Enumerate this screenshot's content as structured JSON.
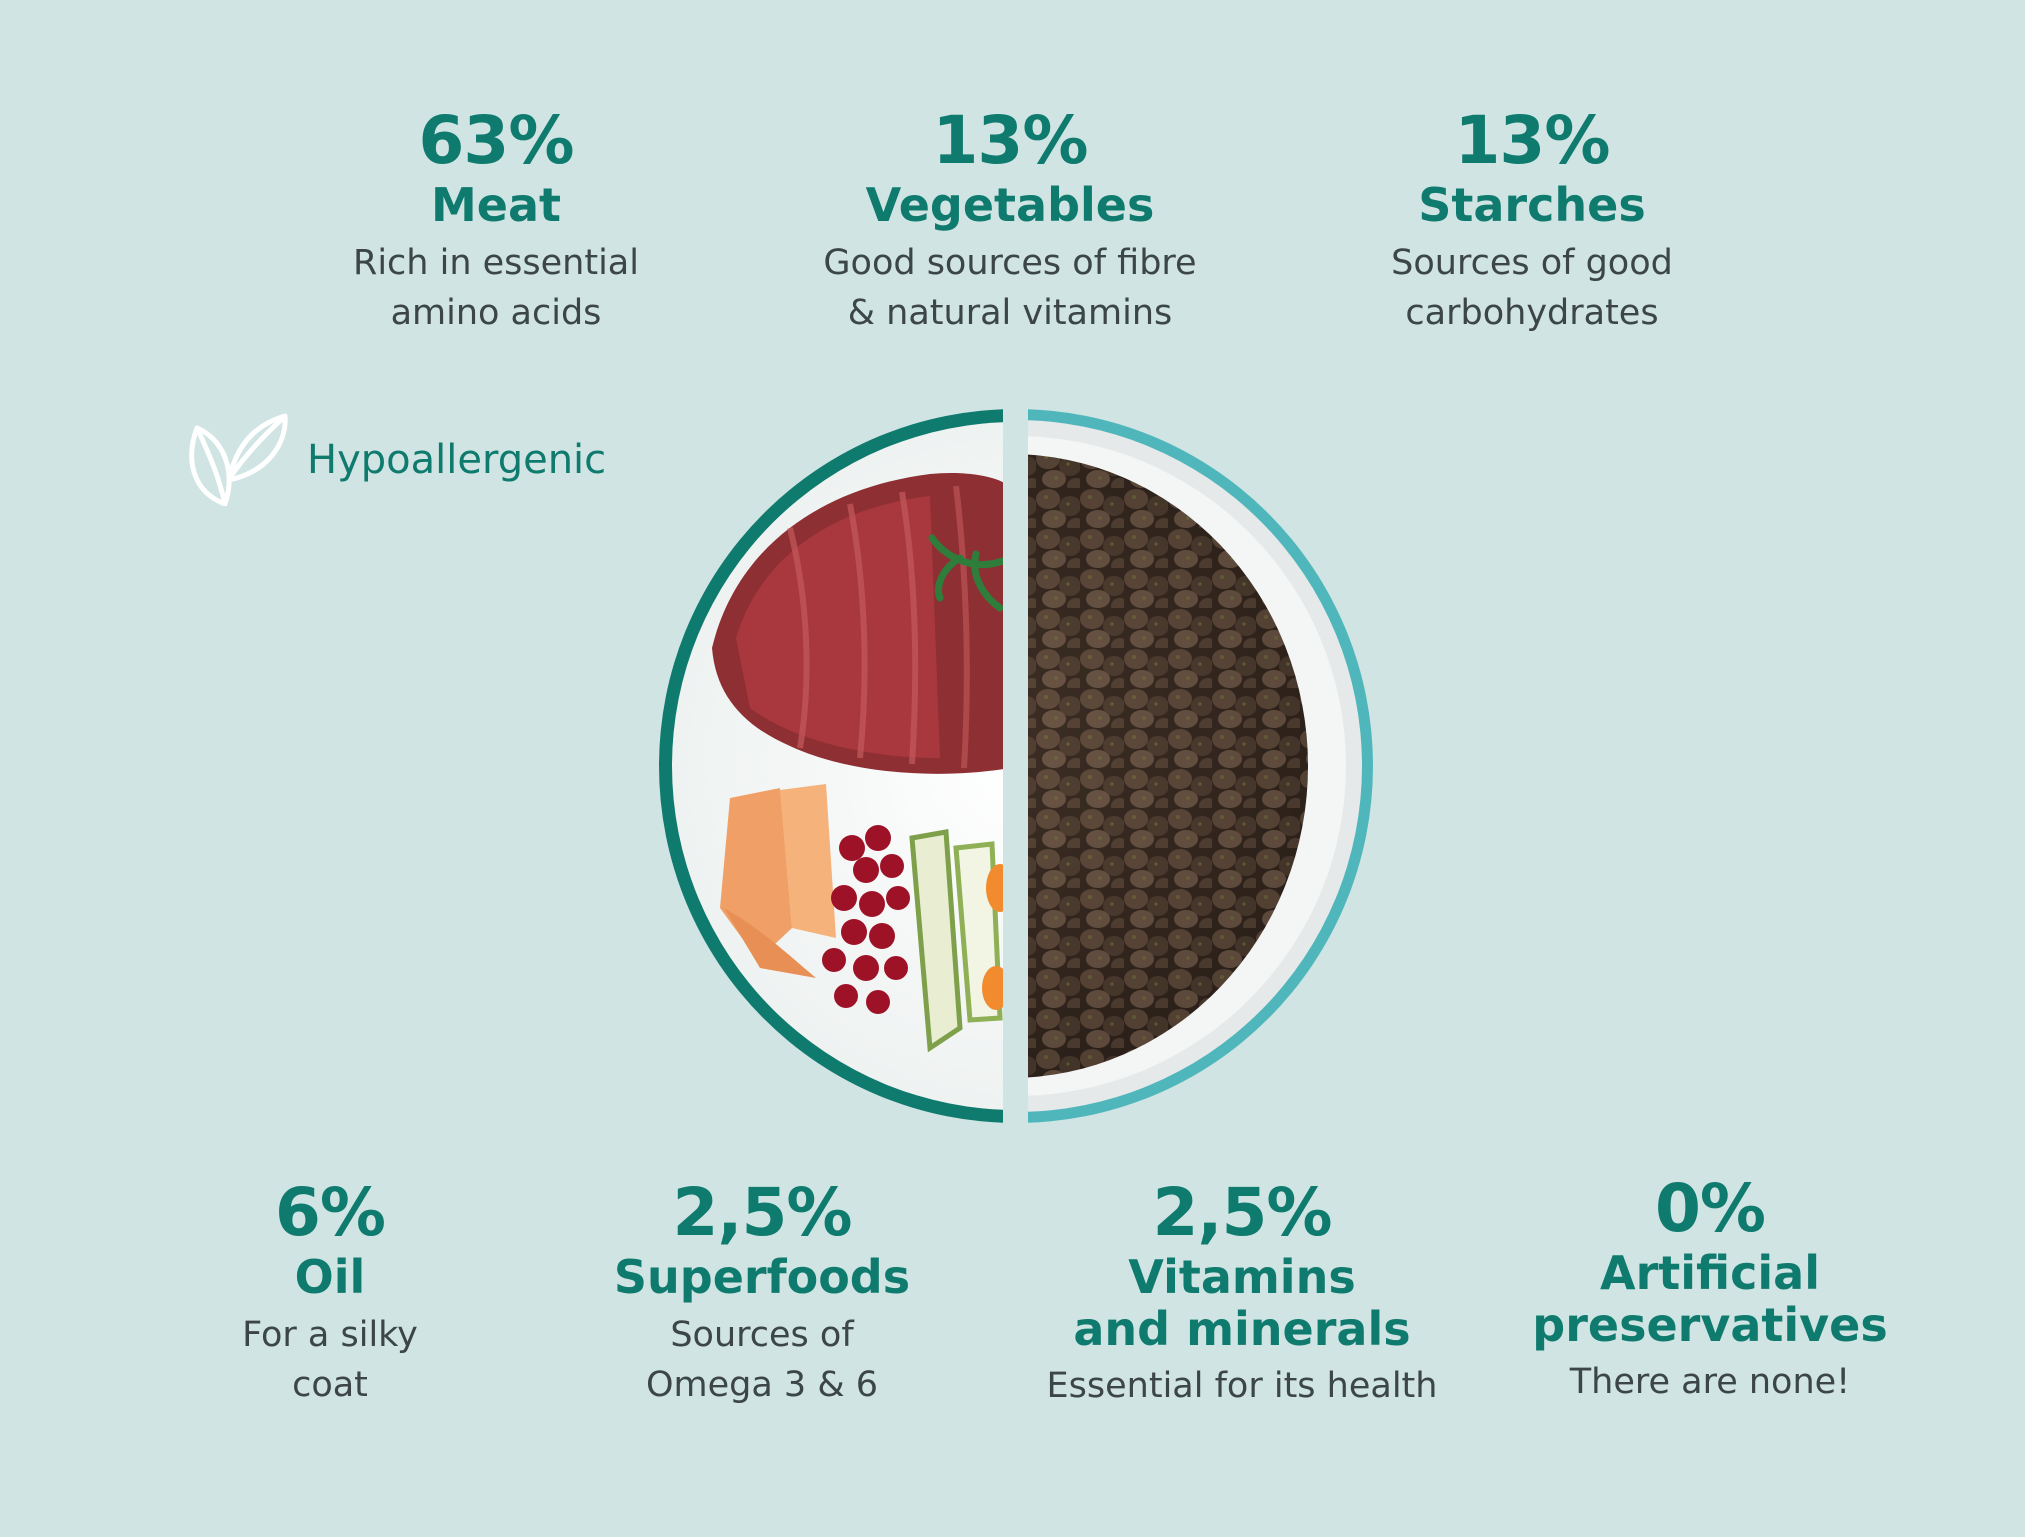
{
  "badge": {
    "label": "Hypoallergenic",
    "icon": "leaf-icon"
  },
  "top_stats": [
    {
      "percent": "63%",
      "name": "Meat",
      "desc1": "Rich in essential",
      "desc2": "amino acids"
    },
    {
      "percent": "13%",
      "name": "Vegetables",
      "desc1": "Good sources of fibre",
      "desc2": "& natural vitamins"
    },
    {
      "percent": "13%",
      "name": "Starches",
      "desc1": "Sources of good",
      "desc2": "carbohydrates"
    }
  ],
  "bottom_stats": [
    {
      "percent": "6%",
      "name": "Oil",
      "desc1": "For a silky",
      "desc2": "coat"
    },
    {
      "percent": "2,5%",
      "name": "Superfoods",
      "desc1": "Sources of",
      "desc2": "Omega 3 & 6"
    },
    {
      "percent": "2,5%",
      "name1": "Vitamins",
      "name2": "and minerals",
      "desc1": "Essential for its health"
    },
    {
      "percent": "0%",
      "name1": "Artificial",
      "name2": "preservatives",
      "desc1": "There are none!"
    }
  ],
  "colors": {
    "background": "#cfe4e3",
    "accent": "#0f7a6e",
    "text": "#3d4646"
  }
}
